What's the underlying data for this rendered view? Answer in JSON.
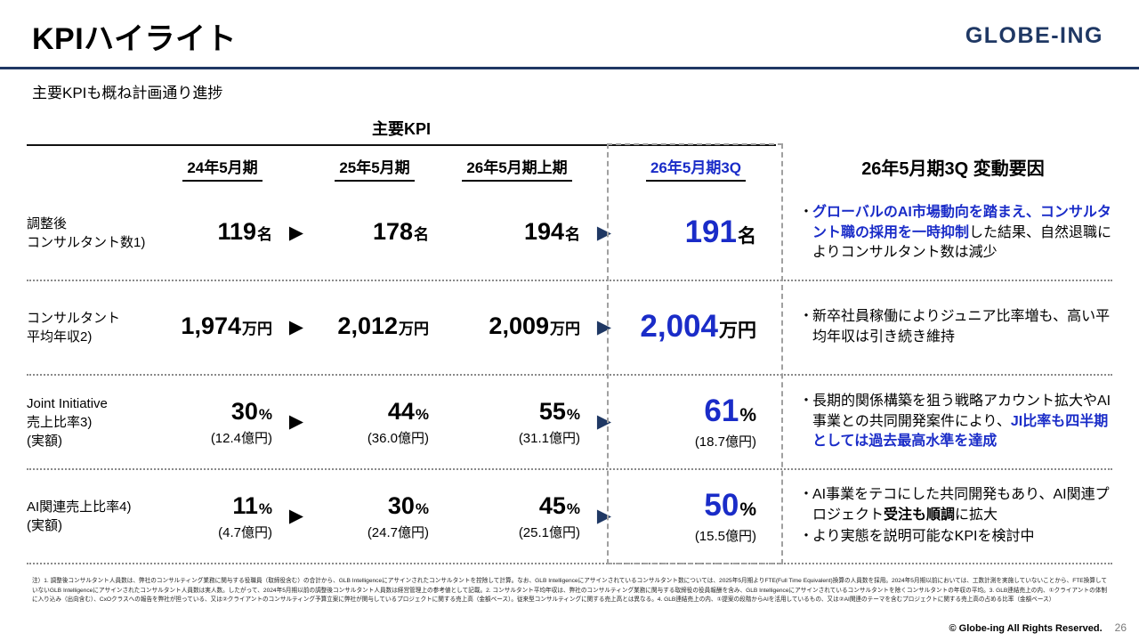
{
  "colors": {
    "navy": "#1f3864",
    "accent": "#1a2cc8",
    "dash": "#a0a0a0"
  },
  "icons": {
    "arrow_right": "▶"
  },
  "header": {
    "title": "KPIハイライト",
    "logo": "GLOBE-ING",
    "subtitle": "主要KPIも概ね計画通り進捗"
  },
  "table": {
    "group_header": "主要KPI",
    "columns": [
      "24年5月期",
      "25年5月期",
      "26年5月期上期",
      "26年5月期3Q"
    ],
    "factor_header": "26年5月期3Q 変動要因",
    "rows": [
      {
        "label": [
          "調整後",
          "コンサルタント数1)"
        ],
        "values": [
          {
            "n": "119",
            "u": "名"
          },
          {
            "n": "178",
            "u": "名"
          },
          {
            "n": "194",
            "u": "名"
          },
          {
            "n": "191",
            "u": "名"
          }
        ],
        "notes": [
          [
            {
              "t": "グローバルのAI市場動向を踏まえ、コンサルタント職の採用を一時抑制",
              "c": "bb"
            },
            {
              "t": "した結果、自然退職によりコンサルタント数は減少",
              "c": ""
            }
          ]
        ]
      },
      {
        "label": [
          "コンサルタント",
          "平均年収2)"
        ],
        "values": [
          {
            "n": "1,974",
            "u": "万円"
          },
          {
            "n": "2,012",
            "u": "万円"
          },
          {
            "n": "2,009",
            "u": "万円"
          },
          {
            "n": "2,004",
            "u": "万円"
          }
        ],
        "notes": [
          [
            {
              "t": "新卒社員稼働によりジュニア比率増も、高い平均年収は引き続き維持",
              "c": ""
            }
          ]
        ]
      },
      {
        "label": [
          "Joint Initiative",
          "売上比率3)",
          "(実額)"
        ],
        "values": [
          {
            "n": "30",
            "u": "%",
            "s": "(12.4億円)"
          },
          {
            "n": "44",
            "u": "%",
            "s": "(36.0億円)"
          },
          {
            "n": "55",
            "u": "%",
            "s": "(31.1億円)"
          },
          {
            "n": "61",
            "u": "%",
            "s": "(18.7億円)"
          }
        ],
        "notes": [
          [
            {
              "t": "長期的関係構築を狙う戦略アカウント拡大やAI事業との共同開発案件により、",
              "c": ""
            },
            {
              "t": "JI比率も四半期としては過去最高水準を達成",
              "c": "bb"
            }
          ]
        ]
      },
      {
        "label": [
          "AI関連売上比率4)",
          "(実額)"
        ],
        "values": [
          {
            "n": "11",
            "u": "%",
            "s": "(4.7億円)"
          },
          {
            "n": "30",
            "u": "%",
            "s": "(24.7億円)"
          },
          {
            "n": "45",
            "u": "%",
            "s": "(25.1億円)"
          },
          {
            "n": "50",
            "u": "%",
            "s": "(15.5億円)"
          }
        ],
        "notes": [
          [
            {
              "t": "AI事業をテコにした共同開発もあり、AI関連プロジェクト",
              "c": ""
            },
            {
              "t": "受注も順調",
              "c": "b"
            },
            {
              "t": "に拡大",
              "c": ""
            }
          ],
          [
            {
              "t": "より実態を説明可能なKPIを検討中",
              "c": ""
            }
          ]
        ]
      }
    ]
  },
  "footnote": "注）1. 調整後コンサルタント人員数は、弊社のコンサルティング業務に関与する役職員（取締役含む）の合計から、GLB Intelligenceにアサインされたコンサルタントを控除して計算。なお、GLB Intelligenceにアサインされているコンサルタント数については、2025年5月期よりFTE(Full Time Equivalent)換算の人員数を採用。2024年5月期以前においては、工数計測を実施していないことから、FTE換算していないGLB Intelligenceにアサインされたコンサルタント人員数は実人数。したがって、2024年5月期以前の調整後コンサルタント人員数は経営管理上の参考値として記載。2. コンサルタント平均年収は、弊社のコンサルティング業務に関与する取締役の役員報酬を含み、GLB Intelligenceにアサインされているコンサルタントを除くコンサルタントの年収の平均。3. GLB連結売上の内、①クライアントの体制に入り込み（出向含む）、CxOクラスへの報告を弊社が担っている、又は②クライアントのコンサルティング予算立案に弊社が関与しているプロジェクトに関する売上高（金額ベース）。従来型コンサルティングに関する売上高とは異なる。4. GLB連結売上の内、①提案の段階からAIを活用しているもの、又は②AI関連のテーマを含むプロジェクトに関する売上高の占める比率（金額ベース）",
  "footer": {
    "copyright": "© Globe-ing All Rights Reserved.",
    "page_number": "26"
  }
}
